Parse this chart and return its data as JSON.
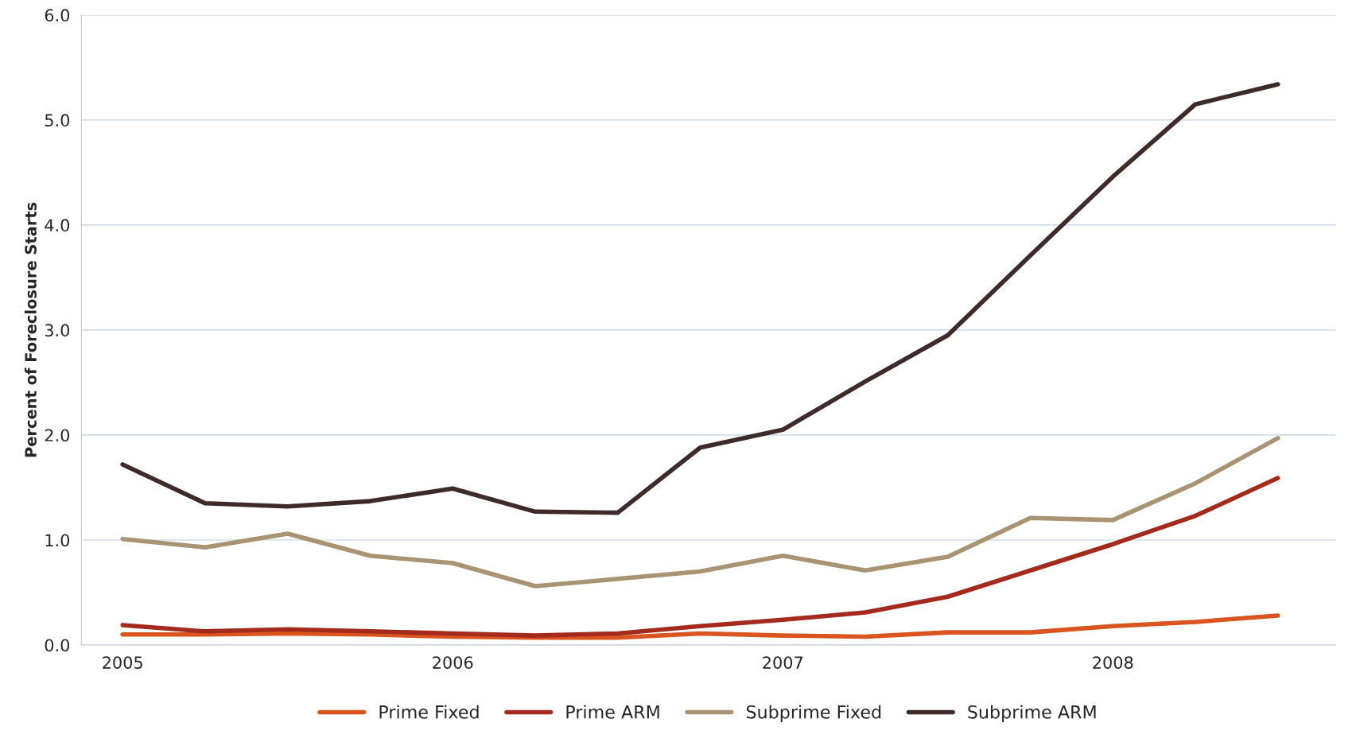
{
  "chart_data": {
    "type": "line",
    "ylabel": "Percent of Foreclosure Starts",
    "categories": [
      "2005",
      null,
      null,
      null,
      "2006",
      null,
      null,
      null,
      "2007",
      null,
      null,
      null,
      "2008",
      null,
      null
    ],
    "series": [
      {
        "name": "Prime Fixed",
        "color": "#d9541e",
        "values": [
          0.1,
          0.1,
          0.11,
          0.1,
          0.08,
          0.07,
          0.07,
          0.11,
          0.09,
          0.08,
          0.12,
          0.12,
          0.18,
          0.22,
          0.28
        ]
      },
      {
        "name": "Prime ARM",
        "color": "#a52a1e",
        "values": [
          0.19,
          0.13,
          0.15,
          0.13,
          0.11,
          0.09,
          0.11,
          0.18,
          0.24,
          0.31,
          0.46,
          0.71,
          0.96,
          1.23,
          1.59
        ]
      },
      {
        "name": "Subprime Fixed",
        "color": "#a89372",
        "values": [
          1.01,
          0.93,
          1.06,
          0.85,
          0.78,
          0.56,
          0.63,
          0.7,
          0.85,
          0.71,
          0.84,
          1.21,
          1.19,
          1.54,
          1.97
        ]
      },
      {
        "name": "Subprime ARM",
        "color": "#3f2a2a",
        "values": [
          1.72,
          1.35,
          1.32,
          1.37,
          1.49,
          1.27,
          1.26,
          1.88,
          2.05,
          2.51,
          2.95,
          3.71,
          4.46,
          5.15,
          5.34
        ]
      }
    ],
    "ylim": [
      0,
      6
    ],
    "yticks": [
      {
        "value": 0,
        "label": "0.0"
      },
      {
        "value": 1,
        "label": "1.0"
      },
      {
        "value": 2,
        "label": "2.0"
      },
      {
        "value": 3,
        "label": "3.0"
      },
      {
        "value": 4,
        "label": "4.0"
      },
      {
        "value": 5,
        "label": "5.0"
      },
      {
        "value": 6,
        "label": "6.0"
      }
    ],
    "grid": "y",
    "legend": "bottom",
    "marker": "none",
    "line_style": "solid"
  }
}
